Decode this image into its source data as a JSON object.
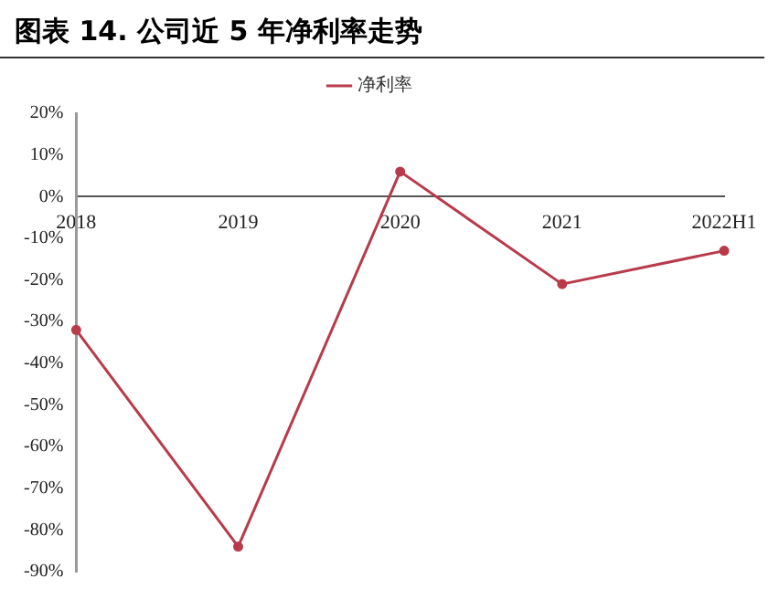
{
  "chart_data": {
    "type": "line",
    "title": "图表 14. 公司近 5 年净利率走势",
    "categories": [
      "2018",
      "2019",
      "2020",
      "2021",
      "2022H1"
    ],
    "series": [
      {
        "name": "净利率",
        "color": "#b83a4b",
        "values": [
          -32,
          -84,
          6,
          -21,
          -13
        ]
      }
    ],
    "ylim": [
      -90,
      20
    ],
    "yticks": [
      {
        "value": -90,
        "label": "-90%"
      },
      {
        "value": -80,
        "label": "-80%"
      },
      {
        "value": -70,
        "label": "-70%"
      },
      {
        "value": -60,
        "label": "-60%"
      },
      {
        "value": -50,
        "label": "-50%"
      },
      {
        "value": -40,
        "label": "-40%"
      },
      {
        "value": -30,
        "label": "-30%"
      },
      {
        "value": -20,
        "label": "-20%"
      },
      {
        "value": -10,
        "label": "-10%"
      },
      {
        "value": 0,
        "label": "0%"
      },
      {
        "value": 10,
        "label": "10%"
      },
      {
        "value": 20,
        "label": "20%"
      }
    ],
    "grid": false,
    "legend": "top",
    "marker": "circle",
    "line_style": "solid"
  }
}
